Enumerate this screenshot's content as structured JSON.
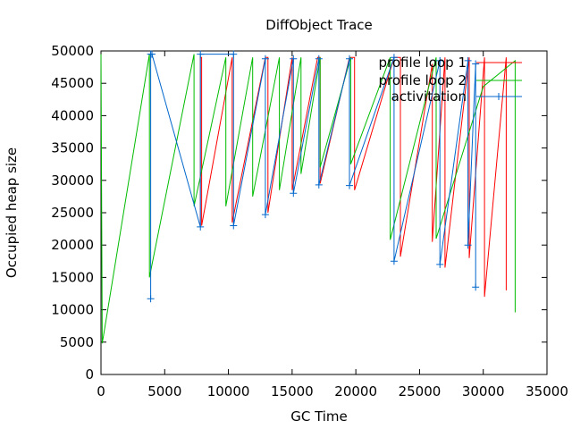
{
  "chart_data": {
    "type": "line",
    "title": "DiffObject Trace",
    "xlabel": "GC Time",
    "ylabel": "Occupied heap size",
    "xlim": [
      0,
      35000
    ],
    "ylim": [
      0,
      50000
    ],
    "xticks": [
      0,
      5000,
      10000,
      15000,
      20000,
      25000,
      30000,
      35000
    ],
    "yticks": [
      0,
      5000,
      10000,
      15000,
      20000,
      25000,
      30000,
      35000,
      40000,
      45000,
      50000
    ],
    "legend_position": "top-right",
    "grid": false,
    "series": [
      {
        "name": "profile loop 1",
        "color": "#ff0000",
        "marker": "none",
        "points": [
          [
            7800,
            22800
          ],
          [
            7800,
            49000
          ],
          [
            7900,
            49000
          ],
          [
            7900,
            23000
          ],
          [
            10300,
            49000
          ],
          [
            10300,
            23500
          ],
          [
            12900,
            49000
          ],
          [
            13100,
            49000
          ],
          [
            13100,
            25000
          ],
          [
            15000,
            49000
          ],
          [
            15000,
            28500
          ],
          [
            17000,
            49000
          ],
          [
            17200,
            49000
          ],
          [
            17200,
            29500
          ],
          [
            19500,
            49000
          ],
          [
            19900,
            49000
          ],
          [
            19900,
            28500
          ],
          [
            23000,
            49000
          ],
          [
            23500,
            49000
          ],
          [
            23500,
            18200
          ],
          [
            26000,
            48000
          ],
          [
            26000,
            20500
          ],
          [
            27000,
            49000
          ],
          [
            27000,
            16500
          ],
          [
            28900,
            49000
          ],
          [
            28900,
            18000
          ],
          [
            30100,
            49000
          ],
          [
            30100,
            12000
          ],
          [
            31800,
            49000
          ],
          [
            31800,
            13000
          ]
        ]
      },
      {
        "name": "profile loop 2",
        "color": "#00bb00",
        "marker": "none",
        "points": [
          [
            0,
            49500
          ],
          [
            100,
            4800
          ],
          [
            3800,
            49500
          ],
          [
            3800,
            15000
          ],
          [
            7300,
            49500
          ],
          [
            7300,
            26000
          ],
          [
            9800,
            49000
          ],
          [
            9800,
            26000
          ],
          [
            11900,
            49000
          ],
          [
            11900,
            27500
          ],
          [
            14000,
            49000
          ],
          [
            14000,
            28500
          ],
          [
            15700,
            49000
          ],
          [
            15700,
            31000
          ],
          [
            17200,
            49000
          ],
          [
            17200,
            32000
          ],
          [
            19600,
            49000
          ],
          [
            19600,
            32500
          ],
          [
            22700,
            49000
          ],
          [
            22700,
            20800
          ],
          [
            26300,
            49000
          ],
          [
            26300,
            21000
          ],
          [
            30000,
            44500
          ],
          [
            32500,
            48500
          ],
          [
            32500,
            9600
          ]
        ]
      },
      {
        "name": "activitation",
        "color": "#0066cc",
        "marker": "plus",
        "points": [
          [
            3900,
            11700
          ],
          [
            3900,
            49500
          ],
          [
            4000,
            49500
          ],
          [
            7800,
            22800
          ],
          [
            7800,
            49500
          ],
          [
            10400,
            49500
          ],
          [
            10400,
            23000
          ],
          [
            12900,
            48800
          ],
          [
            12900,
            24700
          ],
          [
            15100,
            48800
          ],
          [
            15100,
            28000
          ],
          [
            17100,
            48800
          ],
          [
            17100,
            29300
          ],
          [
            19500,
            48800
          ],
          [
            19500,
            29200
          ],
          [
            23000,
            49000
          ],
          [
            23000,
            17500
          ],
          [
            26600,
            48500
          ],
          [
            26600,
            17000
          ],
          [
            28800,
            48500
          ],
          [
            28800,
            20000
          ],
          [
            29400,
            48000
          ],
          [
            29400,
            13500
          ]
        ]
      }
    ]
  }
}
